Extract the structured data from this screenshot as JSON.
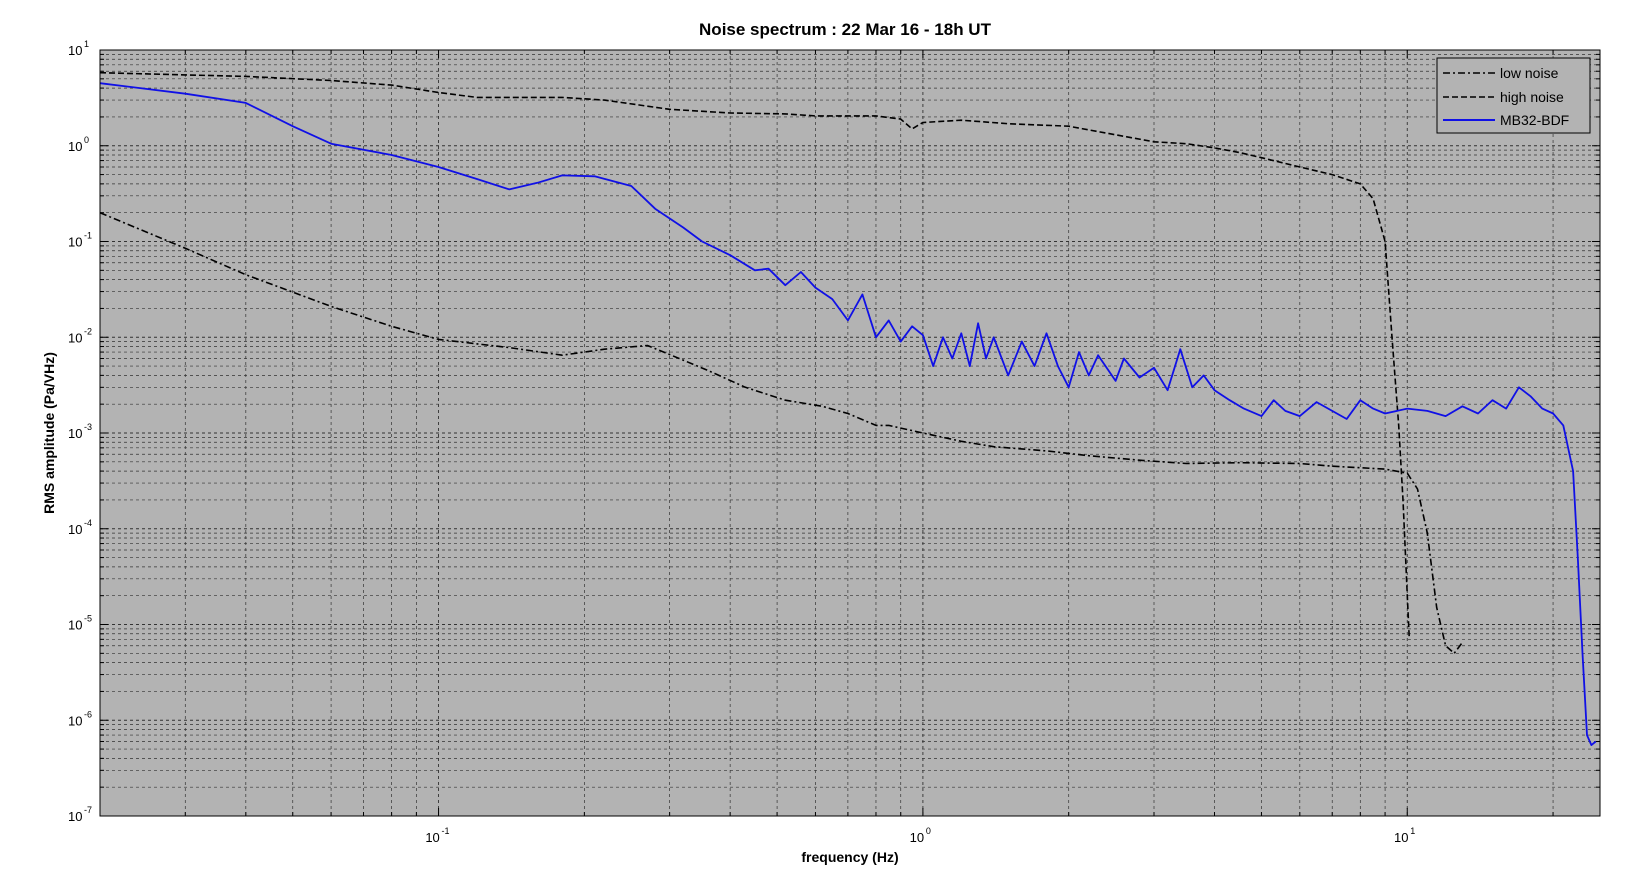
{
  "chart_data": {
    "type": "line",
    "title": "Noise spectrum : 22 Mar 16 - 18h UT",
    "xlabel": "frequency (Hz)",
    "ylabel": "RMS amplitude (Pa/VHz)",
    "x_scale": "log",
    "y_scale": "log",
    "xlim": [
      0.02,
      25
    ],
    "ylim": [
      1e-07,
      10
    ],
    "grid": true,
    "minor_grid": true,
    "legend_position": "top-right",
    "x_ticks": [
      {
        "base": "10",
        "exp": "-1",
        "value": 0.1
      },
      {
        "base": "10",
        "exp": "0",
        "value": 1
      },
      {
        "base": "10",
        "exp": "1",
        "value": 10
      }
    ],
    "y_ticks": [
      {
        "base": "10",
        "exp": "1",
        "value": 10
      },
      {
        "base": "10",
        "exp": "0",
        "value": 1
      },
      {
        "base": "10",
        "exp": "-1",
        "value": 0.1
      },
      {
        "base": "10",
        "exp": "-2",
        "value": 0.01
      },
      {
        "base": "10",
        "exp": "-3",
        "value": 0.001
      },
      {
        "base": "10",
        "exp": "-4",
        "value": 0.0001
      },
      {
        "base": "10",
        "exp": "-5",
        "value": 1e-05
      },
      {
        "base": "10",
        "exp": "-6",
        "value": 1e-06
      },
      {
        "base": "10",
        "exp": "-7",
        "value": 1e-07
      }
    ],
    "colors": {
      "plot_background": "#b3b3b3",
      "low_noise": "#000000",
      "high_noise": "#000000",
      "mb32": "#1010e6"
    },
    "series": [
      {
        "name": "low noise",
        "style": "dash-dot",
        "points": [
          [
            0.02,
            0.2
          ],
          [
            0.03,
            0.085
          ],
          [
            0.04,
            0.045
          ],
          [
            0.06,
            0.021
          ],
          [
            0.08,
            0.013
          ],
          [
            0.1,
            0.0095
          ],
          [
            0.14,
            0.0078
          ],
          [
            0.18,
            0.0065
          ],
          [
            0.22,
            0.0075
          ],
          [
            0.27,
            0.0082
          ],
          [
            0.3,
            0.0066
          ],
          [
            0.36,
            0.0045
          ],
          [
            0.43,
            0.003
          ],
          [
            0.52,
            0.0022
          ],
          [
            0.62,
            0.0019
          ],
          [
            0.7,
            0.0016
          ],
          [
            0.8,
            0.0012
          ],
          [
            0.85,
            0.0012
          ],
          [
            1.0,
            0.001
          ],
          [
            1.2,
            0.00082
          ],
          [
            1.4,
            0.00072
          ],
          [
            1.8,
            0.00065
          ],
          [
            2.2,
            0.00058
          ],
          [
            2.8,
            0.00052
          ],
          [
            3.5,
            0.00048
          ],
          [
            4.5,
            0.00049
          ],
          [
            6.0,
            0.00048
          ],
          [
            7.0,
            0.00045
          ],
          [
            9.0,
            0.00042
          ],
          [
            10.0,
            0.00038
          ],
          [
            10.5,
            0.00026
          ],
          [
            11.0,
            9e-05
          ],
          [
            11.5,
            1.5e-05
          ],
          [
            12.0,
            6e-06
          ],
          [
            12.5,
            5e-06
          ],
          [
            13.0,
            6.5e-06
          ]
        ]
      },
      {
        "name": "high noise",
        "style": "dashed",
        "points": [
          [
            0.02,
            5.8
          ],
          [
            0.03,
            5.5
          ],
          [
            0.04,
            5.3
          ],
          [
            0.06,
            4.8
          ],
          [
            0.08,
            4.3
          ],
          [
            0.1,
            3.6
          ],
          [
            0.12,
            3.2
          ],
          [
            0.18,
            3.2
          ],
          [
            0.22,
            3.0
          ],
          [
            0.3,
            2.4
          ],
          [
            0.4,
            2.2
          ],
          [
            0.52,
            2.15
          ],
          [
            0.6,
            2.05
          ],
          [
            0.8,
            2.05
          ],
          [
            0.9,
            1.9
          ],
          [
            0.95,
            1.5
          ],
          [
            1.0,
            1.75
          ],
          [
            1.2,
            1.85
          ],
          [
            1.5,
            1.7
          ],
          [
            2.0,
            1.6
          ],
          [
            2.5,
            1.3
          ],
          [
            3.0,
            1.1
          ],
          [
            3.5,
            1.05
          ],
          [
            4.0,
            0.95
          ],
          [
            4.5,
            0.85
          ],
          [
            5.0,
            0.75
          ],
          [
            6.0,
            0.6
          ],
          [
            7.0,
            0.5
          ],
          [
            8.0,
            0.4
          ],
          [
            8.5,
            0.28
          ],
          [
            9.0,
            0.1
          ],
          [
            9.3,
            0.01
          ],
          [
            9.6,
            0.0012
          ],
          [
            9.8,
            0.0002
          ],
          [
            10.0,
            2e-05
          ],
          [
            10.1,
            7e-06
          ]
        ]
      },
      {
        "name": "MB32-BDF",
        "style": "solid",
        "points": [
          [
            0.02,
            4.5
          ],
          [
            0.03,
            3.5
          ],
          [
            0.04,
            2.8
          ],
          [
            0.05,
            1.6
          ],
          [
            0.06,
            1.05
          ],
          [
            0.08,
            0.8
          ],
          [
            0.1,
            0.6
          ],
          [
            0.12,
            0.45
          ],
          [
            0.14,
            0.35
          ],
          [
            0.16,
            0.41
          ],
          [
            0.18,
            0.49
          ],
          [
            0.21,
            0.48
          ],
          [
            0.25,
            0.38
          ],
          [
            0.28,
            0.22
          ],
          [
            0.32,
            0.14
          ],
          [
            0.35,
            0.1
          ],
          [
            0.4,
            0.072
          ],
          [
            0.45,
            0.05
          ],
          [
            0.48,
            0.052
          ],
          [
            0.52,
            0.035
          ],
          [
            0.56,
            0.048
          ],
          [
            0.6,
            0.033
          ],
          [
            0.65,
            0.025
          ],
          [
            0.7,
            0.015
          ],
          [
            0.75,
            0.028
          ],
          [
            0.8,
            0.01
          ],
          [
            0.85,
            0.015
          ],
          [
            0.9,
            0.009
          ],
          [
            0.95,
            0.013
          ],
          [
            1.0,
            0.0105
          ],
          [
            1.05,
            0.005
          ],
          [
            1.1,
            0.01
          ],
          [
            1.15,
            0.006
          ],
          [
            1.2,
            0.011
          ],
          [
            1.25,
            0.005
          ],
          [
            1.3,
            0.014
          ],
          [
            1.35,
            0.006
          ],
          [
            1.4,
            0.01
          ],
          [
            1.5,
            0.004
          ],
          [
            1.6,
            0.009
          ],
          [
            1.7,
            0.005
          ],
          [
            1.8,
            0.011
          ],
          [
            1.9,
            0.005
          ],
          [
            2.0,
            0.003
          ],
          [
            2.1,
            0.007
          ],
          [
            2.2,
            0.004
          ],
          [
            2.3,
            0.0065
          ],
          [
            2.5,
            0.0035
          ],
          [
            2.6,
            0.006
          ],
          [
            2.8,
            0.0038
          ],
          [
            3.0,
            0.0048
          ],
          [
            3.2,
            0.0028
          ],
          [
            3.4,
            0.0075
          ],
          [
            3.6,
            0.003
          ],
          [
            3.8,
            0.004
          ],
          [
            4.0,
            0.0028
          ],
          [
            4.3,
            0.0022
          ],
          [
            4.6,
            0.0018
          ],
          [
            5.0,
            0.0015
          ],
          [
            5.3,
            0.0022
          ],
          [
            5.6,
            0.0017
          ],
          [
            6.0,
            0.0015
          ],
          [
            6.5,
            0.0021
          ],
          [
            7.0,
            0.0017
          ],
          [
            7.5,
            0.0014
          ],
          [
            8.0,
            0.0022
          ],
          [
            8.5,
            0.0018
          ],
          [
            9.0,
            0.0016
          ],
          [
            10.0,
            0.0018
          ],
          [
            11.0,
            0.0017
          ],
          [
            12.0,
            0.0015
          ],
          [
            13.0,
            0.0019
          ],
          [
            14.0,
            0.0016
          ],
          [
            15.0,
            0.0022
          ],
          [
            16.0,
            0.0018
          ],
          [
            17.0,
            0.003
          ],
          [
            18.0,
            0.0024
          ],
          [
            19.0,
            0.0018
          ],
          [
            20.0,
            0.0016
          ],
          [
            21.0,
            0.0012
          ],
          [
            22.0,
            0.0004
          ],
          [
            22.5,
            5e-05
          ],
          [
            23.0,
            5e-06
          ],
          [
            23.5,
            7e-07
          ],
          [
            24.0,
            5.5e-07
          ],
          [
            24.5,
            6e-07
          ]
        ]
      }
    ]
  }
}
